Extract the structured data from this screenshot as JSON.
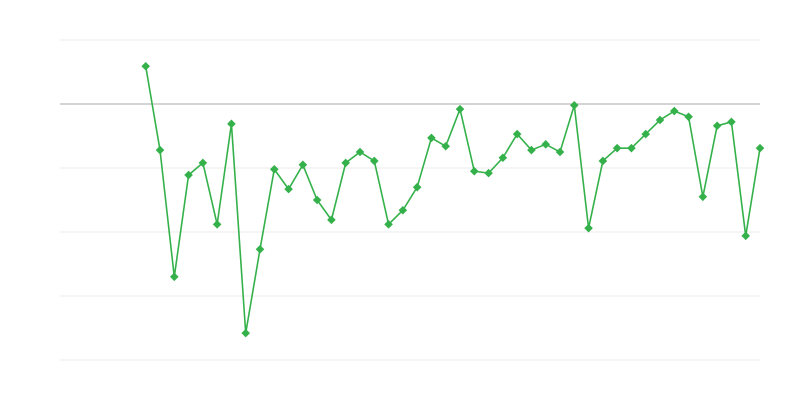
{
  "chart_data": {
    "type": "line",
    "title": "",
    "xlabel": "",
    "ylabel": "",
    "xlim": [
      0,
      49
    ],
    "ylim": [
      -4,
      1
    ],
    "grid": true,
    "reference_line": 0,
    "legend": "none",
    "marker": "diamond",
    "colors": {
      "series": "#34b14a",
      "grid": "#ebebeb",
      "reference": "#aaaaaa"
    },
    "x": [
      6,
      7,
      8,
      9,
      10,
      11,
      12,
      13,
      14,
      15,
      16,
      17,
      18,
      19,
      20,
      21,
      22,
      23,
      24,
      25,
      26,
      27,
      28,
      29,
      30,
      31,
      32,
      33,
      34,
      35,
      36,
      37,
      38,
      39,
      40,
      41,
      42,
      43,
      44,
      45,
      46,
      47,
      48,
      49
    ],
    "values": [
      0.59,
      -0.72,
      -2.7,
      -1.11,
      -0.92,
      -1.88,
      -0.31,
      -3.58,
      -2.27,
      -1.02,
      -1.33,
      -0.95,
      -1.5,
      -1.81,
      -0.92,
      -0.75,
      -0.89,
      -1.88,
      -1.66,
      -1.3,
      -0.53,
      -0.66,
      -0.08,
      -1.05,
      -1.08,
      -0.84,
      -0.47,
      -0.72,
      -0.63,
      -0.75,
      -0.02,
      -1.94,
      -0.89,
      -0.69,
      -0.69,
      -0.47,
      -0.25,
      -0.11,
      -0.2,
      -1.45,
      -0.34,
      -0.28,
      -2.06,
      -0.69
    ]
  }
}
